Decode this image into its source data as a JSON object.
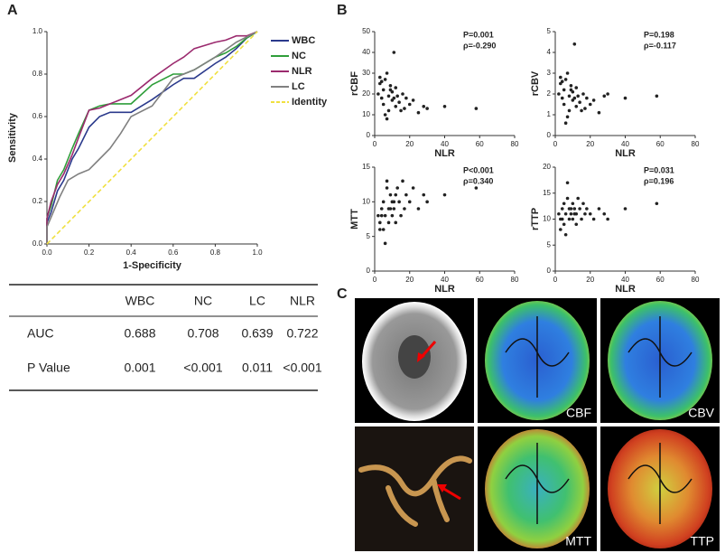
{
  "panel_labels": [
    "A",
    "B",
    "C"
  ],
  "chart_data": [
    {
      "type": "line",
      "xlabel": "1-Specificity",
      "ylabel": "Sensitivity",
      "xlim": [
        0,
        1
      ],
      "ylim": [
        0,
        1
      ],
      "xticks": [
        {
          "value": 0,
          "label": "0.0"
        },
        {
          "value": 0.2,
          "label": "0.2"
        },
        {
          "value": 0.4,
          "label": "0.4"
        },
        {
          "value": 0.6,
          "label": "0.6"
        },
        {
          "value": 0.8,
          "label": "0.8"
        },
        {
          "value": 1,
          "label": "1.0"
        }
      ],
      "yticks": [
        {
          "value": 0,
          "label": "0.0"
        },
        {
          "value": 0.2,
          "label": "0.2"
        },
        {
          "value": 0.4,
          "label": "0.4"
        },
        {
          "value": 0.6,
          "label": "0.6"
        },
        {
          "value": 0.8,
          "label": "0.8"
        },
        {
          "value": 1,
          "label": "1.0"
        }
      ],
      "series": [
        {
          "name": "WBC",
          "color": "#2b3a8c",
          "x": [
            0,
            0,
            0.02,
            0.05,
            0.08,
            0.12,
            0.15,
            0.2,
            0.25,
            0.3,
            0.4,
            0.5,
            0.6,
            0.65,
            0.7,
            0.8,
            0.85,
            0.9,
            0.95,
            1
          ],
          "values": [
            0,
            0.1,
            0.15,
            0.25,
            0.3,
            0.4,
            0.45,
            0.55,
            0.6,
            0.62,
            0.62,
            0.68,
            0.75,
            0.78,
            0.78,
            0.85,
            0.88,
            0.92,
            0.97,
            1
          ]
        },
        {
          "name": "NC",
          "color": "#2f9e3a",
          "x": [
            0,
            0,
            0.02,
            0.05,
            0.08,
            0.12,
            0.15,
            0.2,
            0.25,
            0.3,
            0.4,
            0.5,
            0.6,
            0.65,
            0.7,
            0.8,
            0.85,
            0.9,
            0.95,
            1
          ],
          "values": [
            0,
            0.12,
            0.18,
            0.3,
            0.35,
            0.45,
            0.52,
            0.63,
            0.65,
            0.66,
            0.66,
            0.75,
            0.8,
            0.8,
            0.82,
            0.88,
            0.9,
            0.93,
            0.97,
            1
          ]
        },
        {
          "name": "NLR",
          "color": "#9b2a6e",
          "x": [
            0,
            0,
            0.02,
            0.05,
            0.08,
            0.12,
            0.15,
            0.2,
            0.25,
            0.3,
            0.4,
            0.5,
            0.6,
            0.65,
            0.7,
            0.8,
            0.85,
            0.9,
            0.95,
            1
          ],
          "values": [
            0,
            0.12,
            0.2,
            0.28,
            0.33,
            0.42,
            0.5,
            0.63,
            0.64,
            0.66,
            0.7,
            0.78,
            0.85,
            0.88,
            0.92,
            0.95,
            0.96,
            0.98,
            0.98,
            1
          ]
        },
        {
          "name": "LC",
          "color": "#808080",
          "x": [
            0,
            0,
            0.03,
            0.06,
            0.1,
            0.15,
            0.2,
            0.25,
            0.3,
            0.35,
            0.4,
            0.5,
            0.6,
            0.7,
            0.8,
            0.9,
            1
          ],
          "values": [
            0,
            0.08,
            0.15,
            0.22,
            0.3,
            0.33,
            0.35,
            0.4,
            0.45,
            0.52,
            0.6,
            0.65,
            0.78,
            0.82,
            0.88,
            0.95,
            1
          ]
        },
        {
          "name": "Identity",
          "color": "#f0e040",
          "dashed": true,
          "x": [
            0,
            1
          ],
          "values": [
            0,
            1
          ]
        }
      ]
    },
    {
      "type": "scatter",
      "xlabel": "NLR",
      "ylabel": "rCBF",
      "xlim": [
        0,
        80
      ],
      "ylim": [
        0,
        50
      ],
      "xticks": [
        0,
        20,
        40,
        60,
        80
      ],
      "yticks": [
        0,
        10,
        20,
        30,
        40,
        50
      ],
      "annotations": [
        "P=0.001",
        "ρ=-0.290"
      ],
      "x": [
        2,
        3,
        4,
        5,
        5,
        6,
        7,
        8,
        8,
        9,
        10,
        10,
        11,
        12,
        12,
        13,
        14,
        15,
        16,
        17,
        18,
        20,
        22,
        25,
        28,
        30,
        40,
        58,
        3,
        6,
        9,
        4,
        7,
        11
      ],
      "values": [
        20,
        25,
        18,
        22,
        15,
        27,
        30,
        12,
        19,
        24,
        21,
        17,
        40,
        14,
        23,
        19,
        16,
        12,
        20,
        13,
        18,
        15,
        17,
        11,
        14,
        13,
        14,
        13,
        28,
        10,
        22,
        26,
        8,
        18
      ]
    },
    {
      "type": "scatter",
      "xlabel": "NLR",
      "ylabel": "rCBV",
      "xlim": [
        0,
        80
      ],
      "ylim": [
        0,
        5
      ],
      "xticks": [
        0,
        20,
        40,
        60,
        80
      ],
      "yticks": [
        0,
        1,
        2,
        3,
        4,
        5
      ],
      "annotations": [
        "P=0.198",
        "ρ=-0.117"
      ],
      "x": [
        2,
        3,
        4,
        5,
        5,
        6,
        7,
        8,
        8,
        9,
        10,
        10,
        11,
        12,
        12,
        13,
        14,
        15,
        16,
        17,
        18,
        20,
        22,
        25,
        28,
        30,
        40,
        58,
        3,
        6,
        9,
        4,
        7,
        11
      ],
      "values": [
        2.0,
        2.5,
        1.8,
        2.2,
        1.5,
        2.7,
        3.0,
        1.2,
        1.9,
        2.4,
        2.1,
        1.7,
        4.4,
        1.4,
        2.3,
        1.9,
        1.6,
        1.2,
        2.0,
        1.3,
        1.8,
        1.5,
        1.7,
        1.1,
        1.9,
        2.0,
        1.8,
        1.9,
        2.8,
        0.6,
        2.2,
        2.6,
        0.9,
        1.8
      ]
    },
    {
      "type": "scatter",
      "xlabel": "NLR",
      "ylabel": "MTT",
      "xlim": [
        0,
        80
      ],
      "ylim": [
        0,
        15
      ],
      "xticks": [
        0,
        20,
        40,
        60,
        80
      ],
      "yticks": [
        0,
        5,
        10,
        15
      ],
      "annotations": [
        "P<0.001",
        "ρ=0.340"
      ],
      "x": [
        2,
        3,
        4,
        5,
        5,
        6,
        7,
        8,
        8,
        9,
        10,
        10,
        11,
        12,
        12,
        13,
        14,
        15,
        16,
        17,
        18,
        20,
        22,
        25,
        28,
        30,
        40,
        58,
        3,
        6,
        9,
        4,
        7,
        11
      ],
      "values": [
        8,
        7,
        9,
        6,
        10,
        8,
        12,
        7,
        9,
        11,
        8,
        10,
        9,
        11,
        7,
        12,
        10,
        8,
        13,
        9,
        11,
        10,
        12,
        9,
        11,
        10,
        11,
        12,
        6,
        4,
        9,
        8,
        13,
        10
      ]
    },
    {
      "type": "scatter",
      "xlabel": "NLR",
      "ylabel": "rTTP",
      "xlim": [
        0,
        80
      ],
      "ylim": [
        0,
        20
      ],
      "xticks": [
        0,
        20,
        40,
        60,
        80
      ],
      "yticks": [
        0,
        5,
        10,
        15,
        20
      ],
      "annotations": [
        "P=0.031",
        "ρ=0.196"
      ],
      "x": [
        2,
        3,
        4,
        5,
        5,
        6,
        7,
        8,
        8,
        9,
        10,
        10,
        11,
        12,
        12,
        13,
        14,
        15,
        16,
        17,
        18,
        20,
        22,
        25,
        28,
        30,
        40,
        58,
        3,
        6,
        9,
        4,
        7,
        11
      ],
      "values": [
        11,
        10,
        12,
        9,
        13,
        11,
        14,
        10,
        12,
        11,
        13,
        10,
        12,
        11,
        9,
        14,
        12,
        10,
        13,
        11,
        12,
        11,
        10,
        12,
        11,
        10,
        12,
        13,
        8,
        7,
        12,
        10,
        17,
        11
      ]
    }
  ],
  "table": {
    "header": [
      "WBC",
      "NC",
      "LC",
      "NLR"
    ],
    "rows": [
      [
        "AUC",
        "0.688",
        "0.708",
        "0.639",
        "0.722"
      ],
      [
        "P Value",
        "0.001",
        "<0.001",
        "0.011",
        "<0.001"
      ]
    ]
  },
  "images": {
    "labels": [
      "CBF",
      "CBV",
      "MTT",
      "TTP"
    ]
  }
}
